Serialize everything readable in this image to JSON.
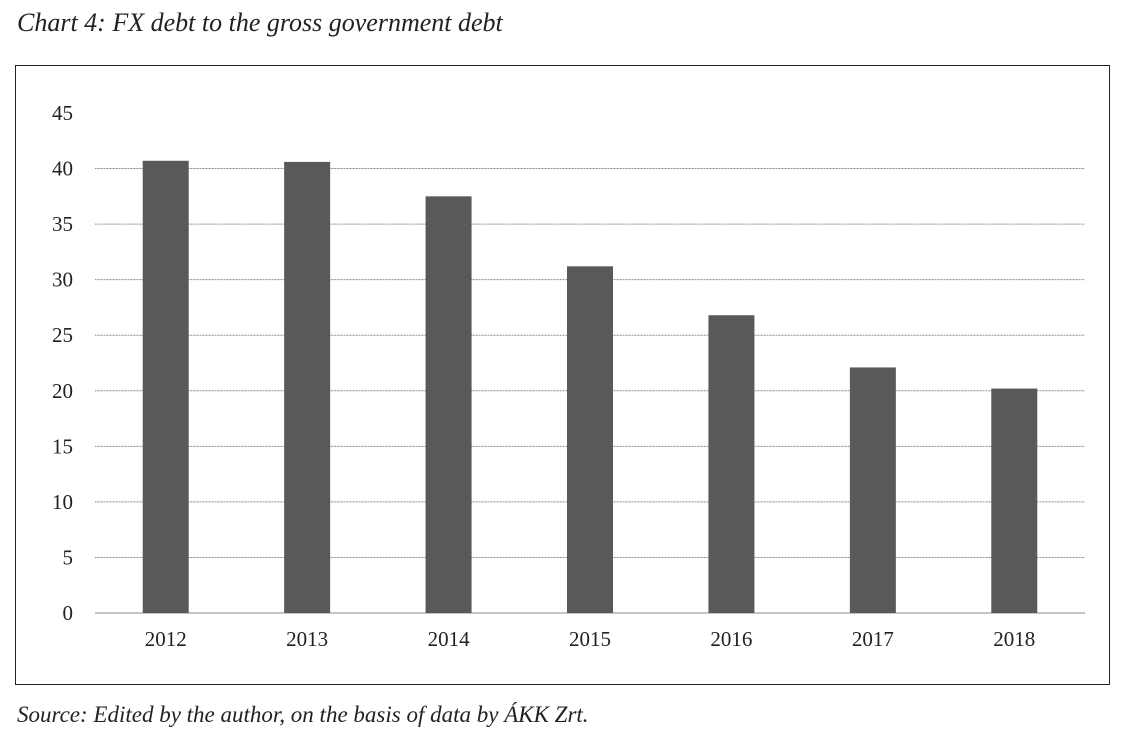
{
  "title": "Chart 4: FX debt to the gross government debt",
  "source": "Source: Edited by the author, on the basis of data by ÁKK Zrt.",
  "chart_data": {
    "type": "bar",
    "title": "Chart 4: FX debt to the gross government debt",
    "xlabel": "",
    "ylabel": "",
    "categories": [
      "2012",
      "2013",
      "2014",
      "2015",
      "2016",
      "2017",
      "2018"
    ],
    "values": [
      40.7,
      40.6,
      37.5,
      31.2,
      26.8,
      22.1,
      20.2
    ],
    "ylim": [
      0,
      45
    ],
    "yticks": [
      0,
      5,
      10,
      15,
      20,
      25,
      30,
      35,
      40,
      45
    ],
    "grid": true,
    "legend": "none",
    "bar_color": "#595959",
    "grid_color": "#8a8a8a"
  }
}
